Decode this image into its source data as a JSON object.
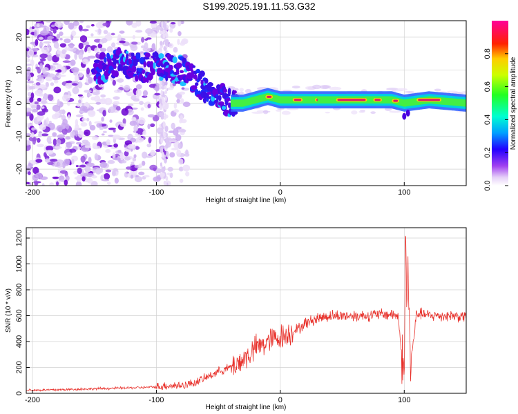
{
  "title": "S199.2025.191.11.53.G32",
  "colors": {
    "snr_line": "#e8322c",
    "ridge_core": "#d8196a",
    "noise_dark": "#7a10d8",
    "noise_light": "#dcc8f5"
  },
  "chart_data": [
    {
      "type": "heatmap",
      "title": "",
      "xlabel": "Height of straight line (km)",
      "ylabel": "Frequency (Hz)",
      "xlim": [
        -205,
        150
      ],
      "ylim": [
        -25,
        25
      ],
      "x_ticks": [
        -200,
        -100,
        0,
        100
      ],
      "y_ticks": [
        20,
        10,
        0,
        -10,
        -20
      ],
      "colorbar": {
        "label": "Normalized spectral amplitude",
        "range": [
          0,
          1
        ],
        "ticks": [
          0.0,
          0.2,
          0.4,
          0.6,
          0.8
        ],
        "colormap": "rainbow (white-violet-blue-cyan-green-yellow-red-magenta)"
      },
      "dominant_frequency_track": {
        "x": [
          -150,
          -130,
          -110,
          -95,
          -80,
          -65,
          -50,
          -40,
          -30,
          -20,
          -10,
          0,
          20,
          50,
          75,
          90,
          100,
          120,
          150
        ],
        "y": [
          10,
          12,
          11,
          11,
          10,
          6,
          2,
          0,
          0,
          1,
          2,
          1,
          1,
          1,
          1,
          1,
          0,
          1,
          0
        ]
      },
      "grid": true
    },
    {
      "type": "line",
      "title": "",
      "xlabel": "Height of straight line (km)",
      "ylabel": "SNR (10 * v/v)",
      "xlim": [
        -205,
        150
      ],
      "ylim": [
        0,
        1280
      ],
      "x_ticks": [
        -200,
        -100,
        0,
        100
      ],
      "y_ticks": [
        0,
        200,
        400,
        600,
        800,
        1000,
        1200
      ],
      "x": [
        -205,
        -190,
        -170,
        -150,
        -130,
        -110,
        -100,
        -90,
        -80,
        -70,
        -60,
        -50,
        -40,
        -30,
        -25,
        -20,
        -15,
        -10,
        -5,
        0,
        5,
        10,
        15,
        20,
        25,
        30,
        40,
        50,
        60,
        70,
        80,
        90,
        95,
        100,
        101,
        102,
        103,
        105,
        110,
        120,
        130,
        140,
        150
      ],
      "y": [
        25,
        25,
        30,
        35,
        40,
        45,
        50,
        60,
        60,
        80,
        120,
        170,
        200,
        260,
        300,
        350,
        370,
        400,
        420,
        440,
        450,
        480,
        500,
        540,
        560,
        580,
        600,
        600,
        600,
        600,
        610,
        610,
        600,
        100,
        1280,
        600,
        1000,
        200,
        620,
        600,
        600,
        600,
        590
      ],
      "grid": true
    }
  ]
}
